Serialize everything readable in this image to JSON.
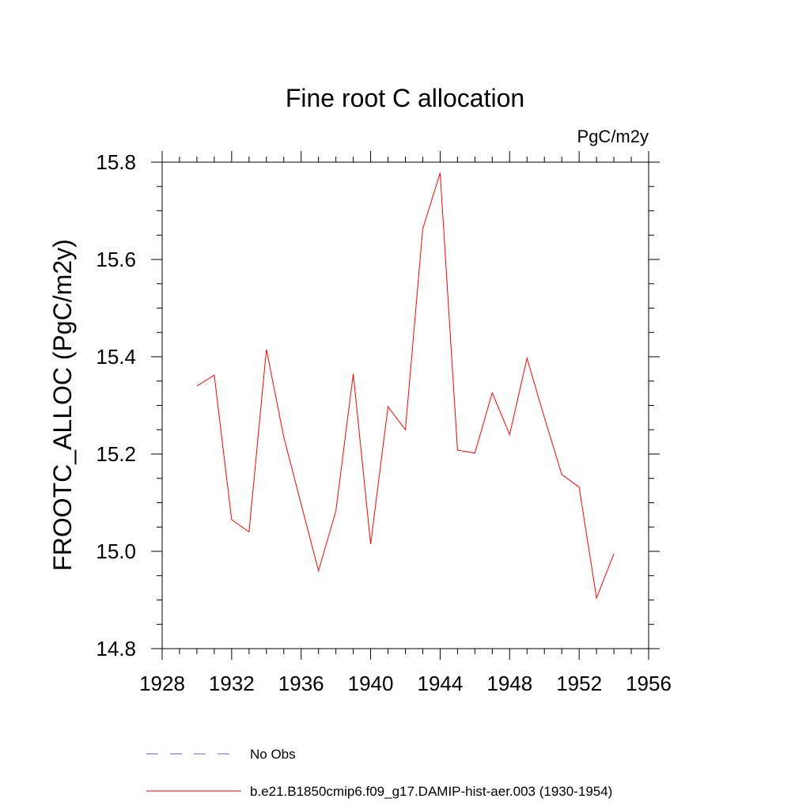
{
  "chart_data": {
    "type": "line",
    "title": "Fine root C allocation",
    "units_label": "PgC/m2y",
    "xlabel": "",
    "ylabel": "FROOTC_ALLOC  (PgC/m2y)",
    "xlim": [
      1928,
      1956
    ],
    "ylim": [
      14.8,
      15.8
    ],
    "x_ticks": [
      1928,
      1932,
      1936,
      1940,
      1944,
      1948,
      1952,
      1956
    ],
    "y_ticks": [
      14.8,
      15.0,
      15.2,
      15.4,
      15.6,
      15.8
    ],
    "y_tick_labels": [
      "14.8",
      "15.0",
      "15.2",
      "15.4",
      "15.6",
      "15.8"
    ],
    "grid": false,
    "legend_position": "bottom",
    "series": [
      {
        "name": "b.e21.B1850cmip6.f09_g17.DAMIP-hist-aer.003 (1930-1954)",
        "color": "#ff0000",
        "style": "solid",
        "x": [
          1930,
          1931,
          1932,
          1933,
          1934,
          1935,
          1936,
          1937,
          1938,
          1939,
          1940,
          1941,
          1942,
          1943,
          1944,
          1945,
          1946,
          1947,
          1948,
          1949,
          1950,
          1951,
          1952,
          1953,
          1954
        ],
        "y": [
          15.34,
          15.362,
          15.065,
          15.04,
          15.415,
          15.235,
          15.097,
          14.96,
          15.083,
          15.365,
          15.015,
          15.297,
          15.25,
          15.663,
          15.778,
          15.208,
          15.202,
          15.326,
          15.24,
          15.397,
          15.275,
          15.158,
          15.132,
          14.904,
          14.995
        ]
      }
    ],
    "legend": [
      {
        "label": "No Obs",
        "color": "#6a5acd",
        "style": "dashed"
      },
      {
        "label": "b.e21.B1850cmip6.f09_g17.DAMIP-hist-aer.003 (1930-1954)",
        "color": "#ff0000",
        "style": "solid"
      }
    ]
  }
}
